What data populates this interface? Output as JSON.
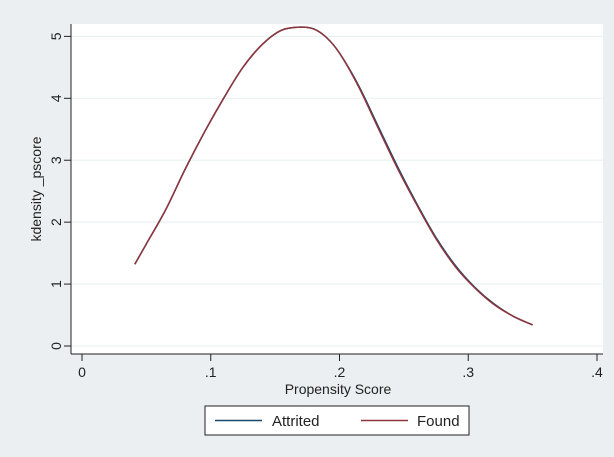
{
  "chart_data": {
    "type": "line",
    "title": "",
    "xlabel": "Propensity Score",
    "ylabel": "kdensity _pscore",
    "xlim": [
      0,
      0.4
    ],
    "ylim": [
      0,
      5.2
    ],
    "x_ticks": [
      0,
      0.1,
      0.2,
      0.3,
      0.4
    ],
    "x_tick_labels": [
      "0",
      ".1",
      ".2",
      ".3",
      ".4"
    ],
    "y_ticks": [
      0,
      1,
      2,
      3,
      4,
      5
    ],
    "y_tick_labels": [
      "0",
      "1",
      "2",
      "3",
      "4",
      "5"
    ],
    "grid": true,
    "legend_position": "bottom",
    "series": [
      {
        "name": "Attrited",
        "color": "#1a476f",
        "x": [
          0.041,
          0.05,
          0.065,
          0.08,
          0.095,
          0.11,
          0.125,
          0.14,
          0.155,
          0.17,
          0.18,
          0.19,
          0.2,
          0.215,
          0.23,
          0.245,
          0.26,
          0.275,
          0.29,
          0.305,
          0.32,
          0.335,
          0.35
        ],
        "y": [
          1.32,
          1.65,
          2.2,
          2.85,
          3.45,
          4.0,
          4.5,
          4.87,
          5.1,
          5.15,
          5.12,
          4.98,
          4.73,
          4.2,
          3.55,
          2.9,
          2.3,
          1.75,
          1.3,
          0.95,
          0.68,
          0.48,
          0.34
        ]
      },
      {
        "name": "Found",
        "color": "#90353b",
        "x": [
          0.041,
          0.05,
          0.065,
          0.08,
          0.095,
          0.11,
          0.125,
          0.14,
          0.155,
          0.17,
          0.18,
          0.19,
          0.2,
          0.215,
          0.23,
          0.245,
          0.26,
          0.275,
          0.29,
          0.305,
          0.32,
          0.335,
          0.35
        ],
        "y": [
          1.32,
          1.65,
          2.2,
          2.85,
          3.45,
          4.0,
          4.5,
          4.87,
          5.1,
          5.15,
          5.12,
          4.98,
          4.73,
          4.18,
          3.52,
          2.87,
          2.28,
          1.73,
          1.28,
          0.94,
          0.67,
          0.48,
          0.34
        ]
      }
    ]
  }
}
